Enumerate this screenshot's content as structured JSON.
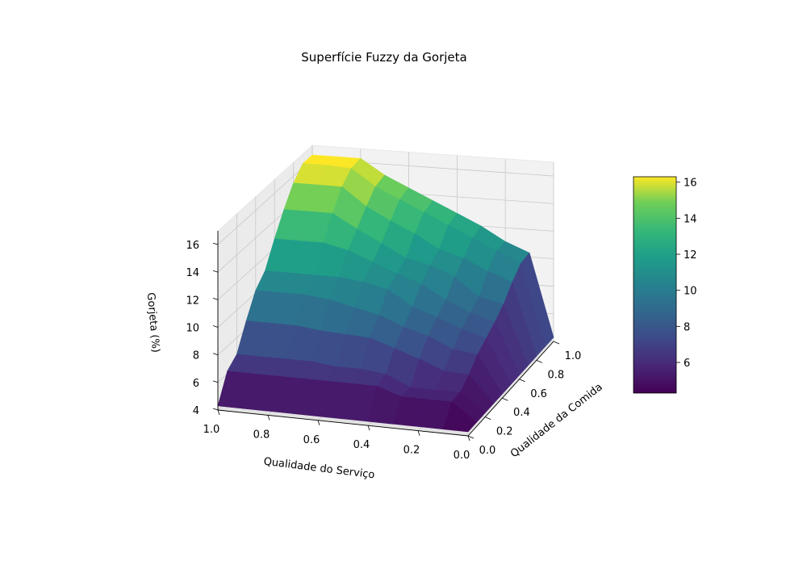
{
  "chart_data": {
    "type": "surface3d",
    "title": "Superfície Fuzzy da Gorjeta",
    "xlabel": "Qualidade do Serviço",
    "ylabel": "Qualidade da Comida",
    "zlabel": "Gorjeta (%)",
    "x_ticks": [
      "1.0",
      "0.8",
      "0.6",
      "0.4",
      "0.2",
      "0.0"
    ],
    "y_ticks": [
      "0.0",
      "0.2",
      "0.4",
      "0.6",
      "0.8",
      "1.0"
    ],
    "z_ticks": [
      "4",
      "6",
      "8",
      "10",
      "12",
      "14",
      "16"
    ],
    "colorbar_ticks": [
      "6",
      "8",
      "10",
      "12",
      "14",
      "16"
    ],
    "colormap": "viridis",
    "zlim": [
      4,
      17
    ],
    "colorbar_range": [
      4.3,
      16.3
    ],
    "grid": true,
    "x": [
      0.0,
      0.1,
      0.2,
      0.3,
      0.4,
      0.5,
      0.6,
      0.7,
      0.8,
      0.9,
      1.0
    ],
    "y": [
      0.0,
      0.1,
      0.2,
      0.3,
      0.4,
      0.5,
      0.6,
      0.7,
      0.8,
      0.9,
      1.0
    ],
    "z": [
      [
        4.3,
        4.3,
        4.3,
        4.3,
        4.3,
        4.3,
        4.3,
        4.3,
        4.3,
        4.3,
        4.3
      ],
      [
        4.3,
        5.6,
        5.6,
        5.6,
        6.2,
        6.2,
        6.2,
        6.2,
        6.2,
        6.2,
        6.2
      ],
      [
        4.3,
        5.6,
        5.6,
        5.6,
        6.4,
        6.6,
        6.6,
        6.8,
        6.8,
        6.8,
        6.8
      ],
      [
        4.3,
        6.2,
        6.3,
        7.0,
        7.6,
        8.2,
        8.3,
        8.4,
        8.6,
        8.6,
        8.6
      ],
      [
        4.3,
        7.0,
        7.2,
        8.0,
        8.5,
        9.2,
        9.6,
        10.0,
        10.2,
        10.2,
        10.2
      ],
      [
        4.3,
        7.5,
        8.0,
        8.7,
        9.3,
        10.4,
        10.8,
        11.0,
        11.0,
        11.0,
        11.0
      ],
      [
        4.3,
        8.0,
        8.5,
        9.3,
        10.3,
        10.9,
        11.6,
        12.3,
        12.7,
        12.7,
        12.7
      ],
      [
        4.3,
        8.6,
        9.0,
        10.3,
        11.0,
        11.4,
        12.3,
        13.2,
        14.2,
        14.2,
        14.2
      ],
      [
        4.3,
        9.5,
        10.2,
        11.0,
        11.5,
        12.5,
        13.3,
        14.2,
        15.5,
        15.5,
        15.5
      ],
      [
        4.3,
        10.2,
        11.0,
        11.8,
        12.6,
        13.4,
        14.2,
        15.0,
        16.2,
        16.3,
        16.3
      ],
      [
        4.3,
        10.3,
        11.0,
        12.0,
        12.8,
        13.6,
        14.4,
        15.2,
        16.3,
        16.3,
        16.3
      ]
    ]
  }
}
